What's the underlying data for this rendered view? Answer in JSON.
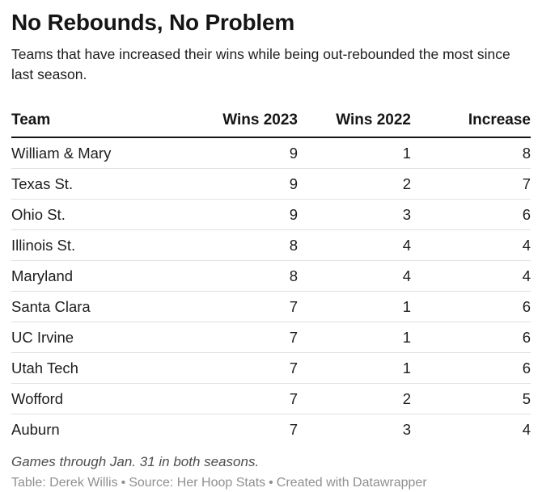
{
  "header": {
    "title": "No Rebounds, No Problem",
    "subtitle": "Teams that have increased their wins while being out-rebounded the most since last season."
  },
  "chart_data": {
    "type": "table",
    "title": "No Rebounds, No Problem",
    "subtitle": "Teams that have increased their wins while being out-rebounded the most since last season.",
    "columns": [
      "Team",
      "Wins 2023",
      "Wins 2022",
      "Increase"
    ],
    "rows": [
      {
        "team": "William & Mary",
        "wins_2023": 9,
        "wins_2022": 1,
        "increase": 8
      },
      {
        "team": "Texas St.",
        "wins_2023": 9,
        "wins_2022": 2,
        "increase": 7
      },
      {
        "team": "Ohio St.",
        "wins_2023": 9,
        "wins_2022": 3,
        "increase": 6
      },
      {
        "team": "Illinois St.",
        "wins_2023": 8,
        "wins_2022": 4,
        "increase": 4
      },
      {
        "team": "Maryland",
        "wins_2023": 8,
        "wins_2022": 4,
        "increase": 4
      },
      {
        "team": "Santa Clara",
        "wins_2023": 7,
        "wins_2022": 1,
        "increase": 6
      },
      {
        "team": "UC Irvine",
        "wins_2023": 7,
        "wins_2022": 1,
        "increase": 6
      },
      {
        "team": "Utah Tech",
        "wins_2023": 7,
        "wins_2022": 1,
        "increase": 6
      },
      {
        "team": "Wofford",
        "wins_2023": 7,
        "wins_2022": 2,
        "increase": 5
      },
      {
        "team": "Auburn",
        "wins_2023": 7,
        "wins_2022": 3,
        "increase": 4
      }
    ],
    "layout": {
      "numeric_columns_align": "right",
      "header_rule": true,
      "row_separators": true
    }
  },
  "footer": {
    "notes": "Games through Jan. 31 in both seasons.",
    "attribution_parts": [
      "Table: Derek Willis",
      "Source: Her Hoop Stats",
      "Created with Datawrapper"
    ],
    "separator": "•"
  },
  "colors": {
    "background": "#ffffff",
    "text_primary": "#1d1d1d",
    "header_rule": "#141414",
    "row_separator": "#e0e0e0",
    "notes_text": "#4d4d4d",
    "attribution_text": "#8f8f8f"
  }
}
